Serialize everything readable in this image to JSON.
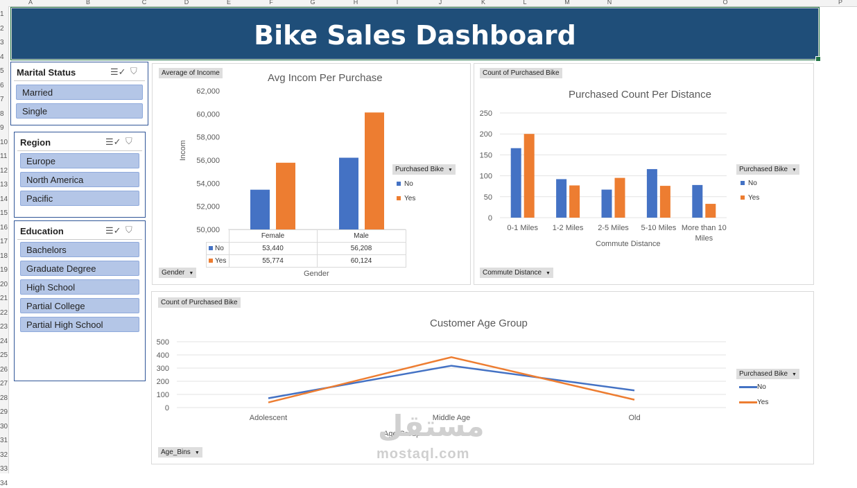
{
  "sheet": {
    "columns": [
      "A",
      "B",
      "C",
      "D",
      "E",
      "F",
      "G",
      "H",
      "I",
      "J",
      "K",
      "L",
      "M",
      "N",
      "O",
      "P"
    ],
    "rows": [
      "1",
      "2",
      "3",
      "4",
      "5",
      "6",
      "7",
      "8",
      "9",
      "10",
      "11",
      "12",
      "13",
      "14",
      "15",
      "16",
      "17",
      "18",
      "19",
      "20",
      "21",
      "22",
      "23",
      "24",
      "25",
      "26",
      "27",
      "28",
      "29",
      "30",
      "31",
      "32",
      "33",
      "34"
    ]
  },
  "banner": {
    "title": "Bike Sales Dashboard"
  },
  "slicers": {
    "marital": {
      "title": "Marital Status",
      "items": [
        "Married",
        "Single"
      ]
    },
    "region": {
      "title": "Region",
      "items": [
        "Europe",
        "North America",
        "Pacific"
      ]
    },
    "education": {
      "title": "Education",
      "items": [
        "Bachelors",
        "Graduate Degree",
        "High School",
        "Partial College",
        "Partial High School"
      ]
    },
    "icons": {
      "multiselect": "multi-select-icon",
      "clear": "clear-filter-icon"
    }
  },
  "colors": {
    "no": "#4472c4",
    "yes": "#ed7d31",
    "banner": "#1f4e79",
    "slicer_item": "#b4c6e7"
  },
  "chart1": {
    "value_button": "Average of Income",
    "axis_button": "Gender",
    "legend_button": "Purchased Bike",
    "table_rows": [
      {
        "label": "No",
        "values": [
          "53,440",
          "56,208"
        ]
      },
      {
        "label": "Yes",
        "values": [
          "55,774",
          "60,124"
        ]
      }
    ]
  },
  "chart2": {
    "value_button": "Count of Purchased Bike",
    "axis_button": "Commute Distance",
    "legend_button": "Purchased Bike"
  },
  "chart3": {
    "value_button": "Count of Purchased Bike",
    "axis_button": "Age_Bins",
    "legend_button": "Purchased Bike"
  },
  "watermark": {
    "arabic": "مستقل",
    "latin": "mostaql.com"
  },
  "chart_data": [
    {
      "type": "bar",
      "title": "Avg Incom Per Purchase",
      "xlabel": "Gender",
      "ylabel": "Incom",
      "categories": [
        "Female",
        "Male"
      ],
      "series": [
        {
          "name": "No",
          "values": [
            53440,
            56208
          ]
        },
        {
          "name": "Yes",
          "values": [
            55774,
            60124
          ]
        }
      ],
      "ylim": [
        50000,
        62000
      ],
      "yticks": [
        "50,000",
        "52,000",
        "54,000",
        "56,000",
        "58,000",
        "60,000",
        "62,000"
      ],
      "legend": "right",
      "grid": false
    },
    {
      "type": "bar",
      "title": "Purchased Count Per Distance",
      "xlabel": "Commute Distance",
      "ylabel": "",
      "categories": [
        "0-1 Miles",
        "1-2 Miles",
        "2-5 Miles",
        "5-10 Miles",
        "More than 10 Miles"
      ],
      "series": [
        {
          "name": "No",
          "values": [
            166,
            92,
            67,
            116,
            78
          ]
        },
        {
          "name": "Yes",
          "values": [
            200,
            77,
            95,
            76,
            33
          ]
        }
      ],
      "ylim": [
        0,
        250
      ],
      "yticks": [
        "0",
        "50",
        "100",
        "150",
        "200",
        "250"
      ],
      "legend": "right",
      "grid": true
    },
    {
      "type": "line",
      "title": "Customer Age Group",
      "xlabel": "Age Group",
      "ylabel": "",
      "categories": [
        "Adolescent",
        "Middle Age",
        "Old"
      ],
      "series": [
        {
          "name": "No",
          "values": [
            71,
            318,
            130
          ]
        },
        {
          "name": "Yes",
          "values": [
            39,
            383,
            60
          ]
        }
      ],
      "ylim": [
        0,
        500
      ],
      "yticks": [
        "0",
        "100",
        "200",
        "300",
        "400",
        "500"
      ],
      "legend": "right",
      "grid": true
    }
  ]
}
